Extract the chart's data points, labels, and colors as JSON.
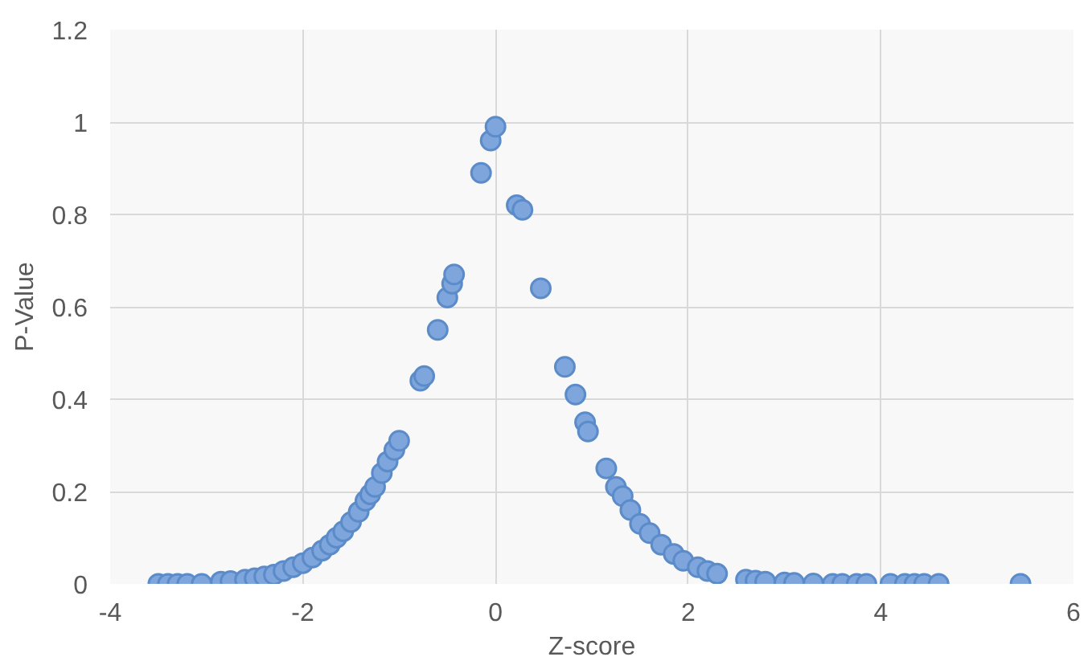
{
  "chart_data": {
    "type": "scatter",
    "xlabel": "Z-score",
    "ylabel": "P-Value",
    "x": [
      -3.5,
      -3.4,
      -3.3,
      -3.2,
      -3.05,
      -2.85,
      -2.75,
      -2.6,
      -2.5,
      -2.4,
      -2.3,
      -2.2,
      -2.1,
      -2.0,
      -1.9,
      -1.8,
      -1.72,
      -1.65,
      -1.58,
      -1.5,
      -1.42,
      -1.35,
      -1.3,
      -1.25,
      -1.18,
      -1.12,
      -1.05,
      -1.0,
      -0.78,
      -0.74,
      -0.6,
      -0.5,
      -0.45,
      -0.43,
      -0.15,
      -0.05,
      0.0,
      0.22,
      0.28,
      0.47,
      0.72,
      0.83,
      0.93,
      0.96,
      1.15,
      1.25,
      1.32,
      1.4,
      1.5,
      1.6,
      1.72,
      1.85,
      1.95,
      2.1,
      2.2,
      2.3,
      2.6,
      2.7,
      2.8,
      3.0,
      3.1,
      3.3,
      3.5,
      3.6,
      3.75,
      3.85,
      4.1,
      4.25,
      4.35,
      4.45,
      4.6,
      5.45
    ],
    "series": [
      {
        "color": "#7ea6dc",
        "values": [
          0,
          0,
          0,
          0,
          0,
          0.005,
          0.006,
          0.009,
          0.012,
          0.016,
          0.02,
          0.028,
          0.036,
          0.045,
          0.057,
          0.072,
          0.085,
          0.1,
          0.114,
          0.134,
          0.156,
          0.18,
          0.194,
          0.21,
          0.24,
          0.265,
          0.29,
          0.31,
          0.44,
          0.45,
          0.55,
          0.62,
          0.65,
          0.67,
          0.89,
          0.96,
          0.99,
          0.82,
          0.81,
          0.64,
          0.47,
          0.41,
          0.35,
          0.33,
          0.25,
          0.21,
          0.19,
          0.16,
          0.13,
          0.11,
          0.085,
          0.065,
          0.05,
          0.036,
          0.028,
          0.022,
          0.009,
          0.007,
          0.005,
          0.003,
          0.002,
          0.001,
          0,
          0,
          0,
          0,
          0,
          0,
          0,
          0,
          0,
          0
        ]
      }
    ],
    "xlim": [
      -4,
      6
    ],
    "xticks": [
      -4,
      -2,
      0,
      2,
      4,
      6
    ],
    "ylim": [
      0,
      1.2
    ],
    "yticks": [
      0,
      0.2,
      0.4,
      0.6,
      0.8,
      1,
      1.2
    ],
    "grid": true,
    "marker": "circle"
  }
}
